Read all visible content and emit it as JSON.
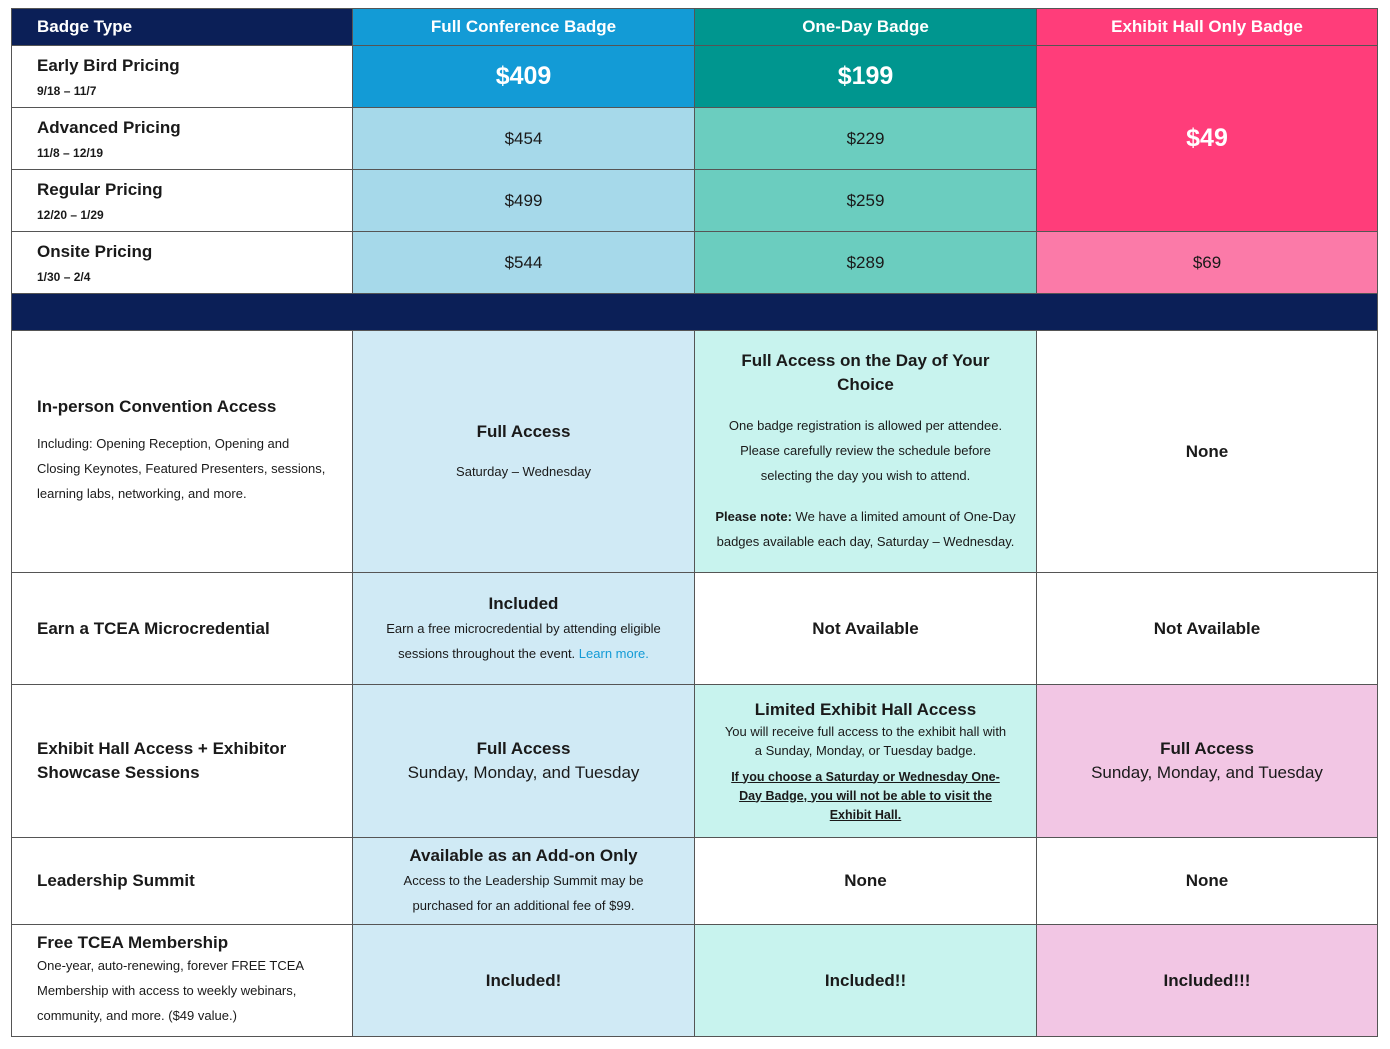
{
  "header": [
    "Badge Type",
    "Full Conference Badge",
    "One-Day Badge",
    "Exhibit Hall Only Badge"
  ],
  "pricing": [
    {
      "name": "Early Bird Pricing",
      "dates": "9/18 – 11/7",
      "full": "$409",
      "one_day": "$199"
    },
    {
      "name": "Advanced Pricing",
      "dates": "11/8 – 12/19",
      "full": "$454",
      "one_day": "$229"
    },
    {
      "name": "Regular Pricing",
      "dates": "12/20 – 1/29",
      "full": "$499",
      "one_day": "$259"
    },
    {
      "name": "Onsite Pricing",
      "dates": "1/30 – 2/4",
      "full": "$544",
      "one_day": "$289"
    }
  ],
  "exhibit_hall_prices": [
    "$49",
    "$69"
  ],
  "features": [
    {
      "name": "In-person Convention Access",
      "description": "Including: Opening Reception, Opening and Closing Keynotes, Featured Presenters, sessions, learning labs, networking, and more.",
      "full": {
        "title": "Full Access",
        "text": "Saturday – Wednesday"
      },
      "one_day": {
        "title": "Full Access on the Day of Your Choice",
        "text": "One badge registration is allowed per attendee. Please carefully review the schedule before selecting the day you wish to attend.",
        "note_label": "Please note:",
        "note": "We have a limited amount of One-Day badges available each day, Saturday – Wednesday."
      },
      "exhibit": {
        "title": "None"
      }
    },
    {
      "name": "Earn a TCEA Microcredential",
      "full": {
        "title": "Included",
        "text": "Earn a free microcredential by attending eligible sessions throughout the event.",
        "link": "Learn more."
      },
      "one_day": {
        "title": "Not Available"
      },
      "exhibit": {
        "title": "Not Available"
      }
    },
    {
      "name": "Exhibit Hall Access + Exhibitor Showcase Sessions",
      "full": {
        "title": "Full Access",
        "text": "Sunday, Monday, and Tuesday"
      },
      "one_day": {
        "title": "Limited Exhibit Hall Access",
        "text": "You will receive full access to the exhibit hall with a Sunday, Monday, or Tuesday badge.",
        "warning": "If you choose a Saturday or Wednesday One-Day Badge, you will not be able to visit the Exhibit Hall."
      },
      "exhibit": {
        "title": "Full Access",
        "text": "Sunday, Monday, and Tuesday"
      }
    },
    {
      "name": "Leadership Summit",
      "full": {
        "title": "Available as an Add-on Only",
        "text": "Access to the Leadership Summit may be purchased for an additional fee of $99."
      },
      "one_day": {
        "title": "None"
      },
      "exhibit": {
        "title": "None"
      }
    },
    {
      "name": "Free TCEA Membership",
      "description": "One-year, auto-renewing, forever FREE TCEA Membership with access to weekly webinars, community, and more. ($49 value.)",
      "full": {
        "title": "Included!"
      },
      "one_day": {
        "title": "Included!!"
      },
      "exhibit": {
        "title": "Included!!!"
      }
    }
  ]
}
